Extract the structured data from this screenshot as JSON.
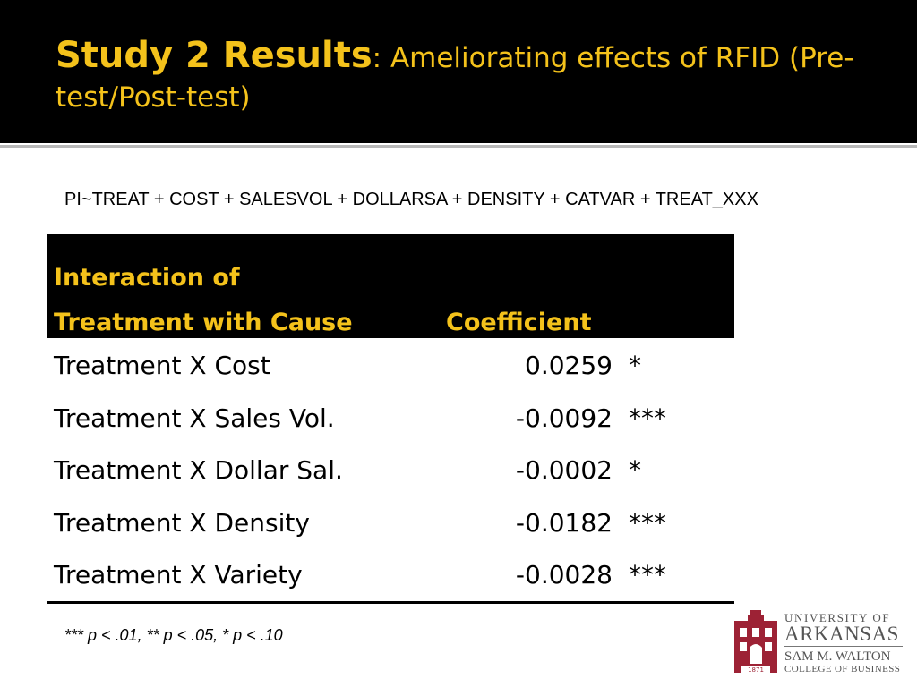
{
  "slide": {
    "title_strong": "Study 2 Results",
    "title_rest": ": Ameliorating effects  of RFID (Pre-test/Post-test)",
    "formula": "PI~TREAT + COST + SALESVOL + DOLLARSA + DENSITY + CATVAR + TREAT_XXX"
  },
  "table": {
    "header_col1_line1": "Interaction of",
    "header_col1_line2": "Treatment with Cause",
    "header_col2": "Coefficient",
    "rows": [
      {
        "name": "Treatment X Cost",
        "coefficient": "0.0259",
        "sig": "*"
      },
      {
        "name": "Treatment X Sales Vol.",
        "coefficient": "-0.0092",
        "sig": "***"
      },
      {
        "name": "Treatment X Dollar Sal.",
        "coefficient": "-0.0002",
        "sig": "*"
      },
      {
        "name": "Treatment X Density",
        "coefficient": "-0.0182",
        "sig": "***"
      },
      {
        "name": "Treatment X Variety",
        "coefficient": "-0.0028",
        "sig": "***"
      }
    ]
  },
  "footnote": "*** p < .01, ** p < .05, * p < .10",
  "logo": {
    "line1": "UNIVERSITY OF",
    "line2": "ARKANSAS",
    "line3": "SAM M. WALTON",
    "line4": "COLLEGE OF BUSINESS",
    "year": "1871"
  },
  "colors": {
    "accent": "#f4c21b",
    "header_bg": "#000000",
    "logo_red": "#9d2235"
  }
}
